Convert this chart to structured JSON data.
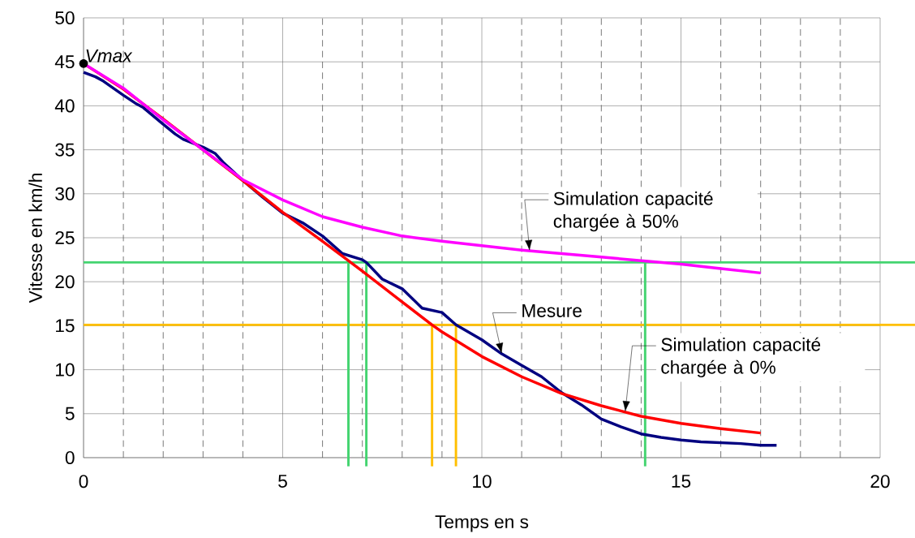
{
  "chart_data": {
    "type": "line",
    "xlabel": "Temps en s",
    "ylabel": "Vitesse en km/h",
    "xlim": [
      0,
      20
    ],
    "ylim": [
      0,
      50
    ],
    "xticks": [
      0,
      5,
      10,
      15,
      20
    ],
    "yticks": [
      0,
      5,
      10,
      15,
      20,
      25,
      30,
      35,
      40,
      45,
      50
    ],
    "grid": true,
    "marker": "none",
    "line_style": "solid",
    "series": [
      {
        "color": "#000080",
        "x": [
          0,
          0.3,
          0.5,
          1,
          1.3,
          1.5,
          2,
          2.3,
          2.5,
          3,
          3.3,
          3.5,
          4,
          4.5,
          5,
          5.5,
          6,
          6.5,
          7,
          7.1,
          7.5,
          8,
          8.5,
          9,
          9.35,
          10,
          10.5,
          11,
          11.5,
          12,
          12.5,
          13,
          13.5,
          14,
          14.5,
          15,
          15.5,
          16,
          16.5,
          17,
          17.4
        ],
        "values": [
          43.8,
          43.3,
          42.8,
          41.2,
          40.3,
          39.8,
          37.9,
          36.8,
          36.2,
          35.3,
          34.6,
          33.6,
          31.5,
          29.6,
          27.8,
          26.7,
          25.2,
          23.2,
          22.5,
          22.2,
          20.3,
          19.2,
          17,
          16.5,
          15.1,
          13.4,
          11.8,
          10.5,
          9.2,
          7.4,
          6,
          4.4,
          3.5,
          2.7,
          2.3,
          2,
          1.8,
          1.7,
          1.6,
          1.4,
          1.4
        ]
      },
      {
        "color": "#ff0000",
        "x": [
          0,
          1,
          2,
          3,
          4,
          5,
          6,
          7,
          8,
          8.75,
          9,
          10,
          11,
          12,
          13,
          14,
          15,
          16,
          17
        ],
        "values": [
          44.8,
          41.9,
          38.5,
          35,
          31.5,
          27.9,
          24.6,
          21.2,
          17.7,
          15.1,
          14.3,
          11.5,
          9.2,
          7.3,
          5.9,
          4.7,
          3.9,
          3.3,
          2.8
        ]
      },
      {
        "color": "#ff00ff",
        "x": [
          0,
          1,
          2,
          3,
          4,
          5,
          6,
          7,
          8,
          9,
          10,
          11,
          12,
          13,
          14,
          15,
          16,
          17
        ],
        "values": [
          44.8,
          42,
          38.4,
          35,
          31.6,
          29.3,
          27.4,
          26.2,
          25.2,
          24.6,
          24.1,
          23.6,
          23.2,
          22.8,
          22.4,
          22,
          21.5,
          21
        ]
      }
    ],
    "ref_lines": [
      {
        "axis": "y",
        "value": 22.2,
        "color": "#44d470"
      },
      {
        "axis": "y",
        "value": 15.1,
        "color": "#ffbf00"
      },
      {
        "axis": "x",
        "value": 6.65,
        "color": "#44d470"
      },
      {
        "axis": "x",
        "value": 7.1,
        "color": "#44d470"
      },
      {
        "axis": "x",
        "value": 14.1,
        "color": "#44d470"
      },
      {
        "axis": "x",
        "value": 8.75,
        "color": "#ffbf00"
      },
      {
        "axis": "x",
        "value": 9.35,
        "color": "#ffbf00"
      }
    ],
    "annotations": [
      {
        "text": "Vmax",
        "x": 0,
        "y": 44.8
      },
      {
        "text": "Simulation capacité chargée à 50%",
        "x": 11.2,
        "y": 23.5
      },
      {
        "text": "Mesure",
        "x": 10.5,
        "y": 11.8
      },
      {
        "text": "Simulation capacité chargée à 0%",
        "x": 13.6,
        "y": 5.2
      }
    ]
  }
}
